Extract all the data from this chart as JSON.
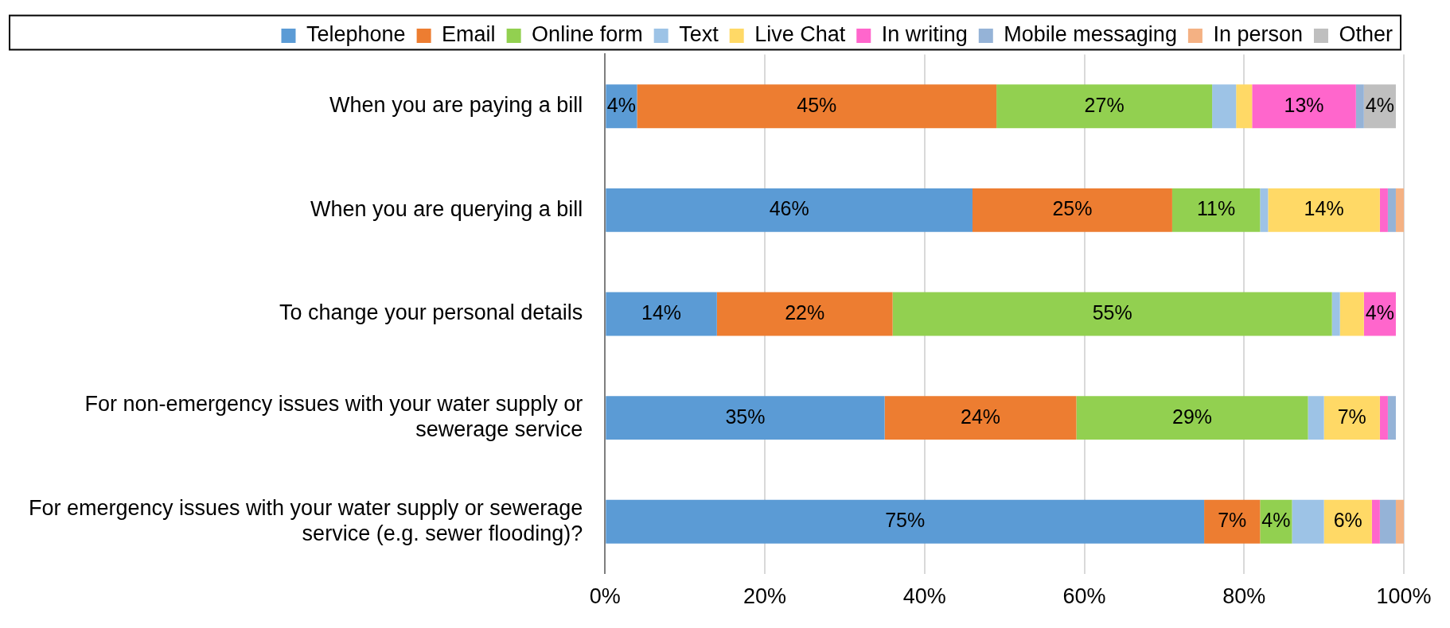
{
  "chart_data": {
    "type": "bar",
    "orientation": "horizontal",
    "stacked": true,
    "categories": [
      "When you are paying a bill",
      "When you are querying a bill",
      "To change your personal details",
      "For non-emergency issues with your water supply or sewerage service",
      "For emergency issues with your water supply or sewerage service (e.g. sewer flooding)?"
    ],
    "series": [
      {
        "name": "Telephone",
        "color": "#5b9bd5",
        "values": [
          4,
          46,
          14,
          35,
          75
        ],
        "value_labels": [
          "4%",
          "46%",
          "14%",
          "35%",
          "75%"
        ]
      },
      {
        "name": "Email",
        "color": "#ed7d31",
        "values": [
          45,
          25,
          22,
          24,
          7
        ],
        "value_labels": [
          "45%",
          "25%",
          "22%",
          "24%",
          "7%"
        ]
      },
      {
        "name": "Online form",
        "color": "#92d050",
        "values": [
          27,
          11,
          55,
          29,
          4
        ],
        "value_labels": [
          "27%",
          "11%",
          "55%",
          "29%",
          "4%"
        ]
      },
      {
        "name": "Text",
        "color": "#9dc3e6",
        "values": [
          3,
          1,
          1,
          2,
          4
        ],
        "value_labels": [
          null,
          null,
          null,
          null,
          null
        ]
      },
      {
        "name": "Live Chat",
        "color": "#ffd966",
        "values": [
          2,
          14,
          3,
          7,
          6
        ],
        "value_labels": [
          null,
          "14%",
          null,
          "7%",
          "6%"
        ]
      },
      {
        "name": "In writing",
        "color": "#ff66cc",
        "values": [
          13,
          1,
          4,
          1,
          1
        ],
        "value_labels": [
          "13%",
          null,
          "4%",
          null,
          null
        ]
      },
      {
        "name": "Mobile messaging",
        "color": "#95b3d7",
        "values": [
          1,
          1,
          0,
          1,
          2
        ],
        "value_labels": [
          null,
          null,
          null,
          null,
          null
        ]
      },
      {
        "name": "In person",
        "color": "#f4b183",
        "values": [
          0,
          1,
          0,
          0,
          1
        ],
        "value_labels": [
          null,
          null,
          null,
          null,
          null
        ]
      },
      {
        "name": "Other",
        "color": "#bfbfbf",
        "values": [
          4,
          0,
          0,
          0,
          0
        ],
        "value_labels": [
          "4%",
          null,
          null,
          null,
          null
        ]
      }
    ],
    "xlim": [
      0,
      100
    ],
    "xticks": [
      {
        "value": 0,
        "label": "0%"
      },
      {
        "value": 20,
        "label": "20%"
      },
      {
        "value": 40,
        "label": "40%"
      },
      {
        "value": 60,
        "label": "60%"
      },
      {
        "value": 80,
        "label": "80%"
      },
      {
        "value": 100,
        "label": "100%"
      }
    ],
    "grid": "x",
    "legend": "top"
  }
}
